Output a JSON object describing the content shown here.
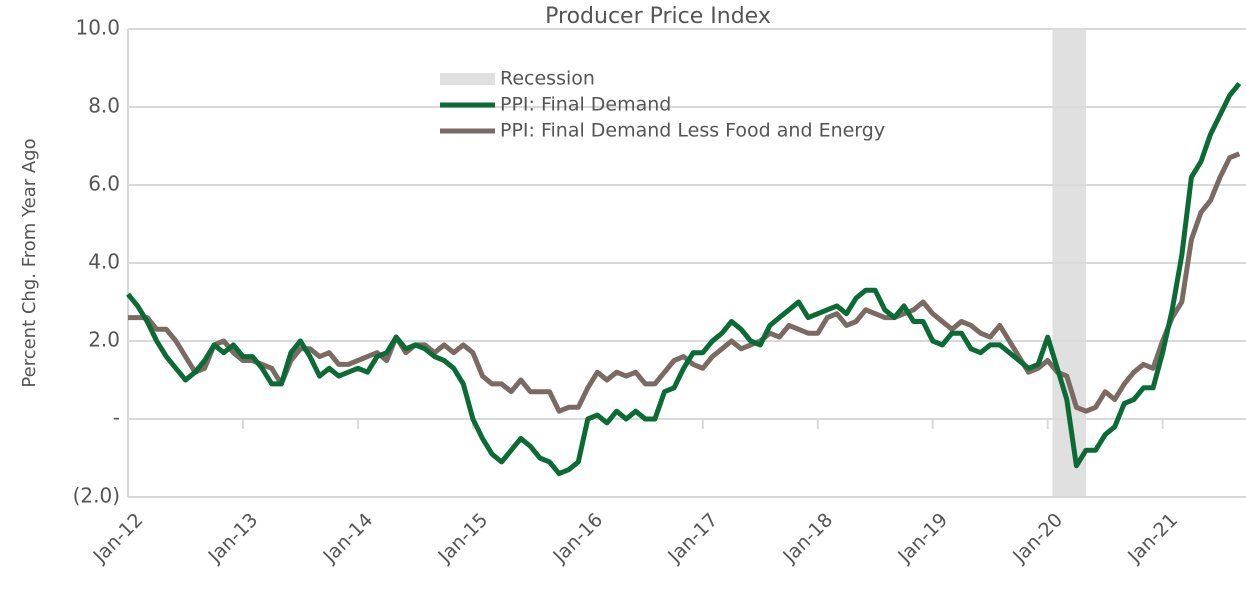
{
  "chart_data": {
    "type": "line",
    "title": "Producer Price Index",
    "y_label": "Percent Chg. From Year Ago",
    "categories": [
      "Jan-12",
      null,
      null,
      null,
      null,
      null,
      null,
      null,
      null,
      null,
      null,
      null,
      "Jan-13",
      null,
      null,
      null,
      null,
      null,
      null,
      null,
      null,
      null,
      null,
      null,
      "Jan-14",
      null,
      null,
      null,
      null,
      null,
      null,
      null,
      null,
      null,
      null,
      null,
      "Jan-15",
      null,
      null,
      null,
      null,
      null,
      null,
      null,
      null,
      null,
      null,
      null,
      "Jan-16",
      null,
      null,
      null,
      null,
      null,
      null,
      null,
      null,
      null,
      null,
      null,
      "Jan-17",
      null,
      null,
      null,
      null,
      null,
      null,
      null,
      null,
      null,
      null,
      null,
      "Jan-18",
      null,
      null,
      null,
      null,
      null,
      null,
      null,
      null,
      null,
      null,
      null,
      "Jan-19",
      null,
      null,
      null,
      null,
      null,
      null,
      null,
      null,
      null,
      null,
      null,
      "Jan-20",
      null,
      null,
      null,
      null,
      null,
      null,
      null,
      null,
      null,
      null,
      null,
      "Jan-21",
      null,
      null,
      null,
      null,
      null,
      null,
      null,
      null
    ],
    "recession": {
      "name": "Recession",
      "color": "#e0e0e0",
      "start": 97,
      "end": 100
    },
    "series": [
      {
        "name": "PPI: Final Demand",
        "color": "#0b6b35",
        "values": [
          3.2,
          2.9,
          2.5,
          2.0,
          1.6,
          1.3,
          1.0,
          1.2,
          1.5,
          1.9,
          1.7,
          1.9,
          1.6,
          1.6,
          1.3,
          0.9,
          0.9,
          1.7,
          2.0,
          1.6,
          1.1,
          1.3,
          1.1,
          1.2,
          1.3,
          1.2,
          1.6,
          1.7,
          2.1,
          1.8,
          1.9,
          1.8,
          1.6,
          1.5,
          1.3,
          0.9,
          0.0,
          -0.5,
          -0.9,
          -1.1,
          -0.8,
          -0.5,
          -0.7,
          -1.0,
          -1.1,
          -1.4,
          -1.3,
          -1.1,
          0.0,
          0.1,
          -0.1,
          0.2,
          0.0,
          0.2,
          0.0,
          0.0,
          0.7,
          0.8,
          1.3,
          1.7,
          1.7,
          2.0,
          2.2,
          2.5,
          2.3,
          2.0,
          1.9,
          2.4,
          2.6,
          2.8,
          3.0,
          2.6,
          2.7,
          2.8,
          2.9,
          2.7,
          3.1,
          3.3,
          3.3,
          2.8,
          2.6,
          2.9,
          2.5,
          2.5,
          2.0,
          1.9,
          2.2,
          2.2,
          1.8,
          1.7,
          1.9,
          1.9,
          1.7,
          1.5,
          1.3,
          1.4,
          2.1,
          1.3,
          0.5,
          -1.2,
          -0.8,
          -0.8,
          -0.4,
          -0.2,
          0.4,
          0.5,
          0.8,
          0.8,
          1.7,
          2.8,
          4.2,
          6.2,
          6.6,
          7.3,
          7.8,
          8.3,
          8.6
        ]
      },
      {
        "name": "PPI: Final Demand Less Food and Energy",
        "color": "#7a6a62",
        "values": [
          2.6,
          2.6,
          2.6,
          2.3,
          2.3,
          2.0,
          1.6,
          1.2,
          1.3,
          1.9,
          2.0,
          1.7,
          1.5,
          1.5,
          1.4,
          1.3,
          0.9,
          1.5,
          1.8,
          1.8,
          1.6,
          1.7,
          1.4,
          1.4,
          1.5,
          1.6,
          1.7,
          1.5,
          2.1,
          1.7,
          1.9,
          1.9,
          1.7,
          1.9,
          1.7,
          1.9,
          1.7,
          1.1,
          0.9,
          0.9,
          0.7,
          1.0,
          0.7,
          0.7,
          0.7,
          0.2,
          0.3,
          0.3,
          0.8,
          1.2,
          1.0,
          1.2,
          1.1,
          1.2,
          0.9,
          0.9,
          1.2,
          1.5,
          1.6,
          1.4,
          1.3,
          1.6,
          1.8,
          2.0,
          1.8,
          1.9,
          2.0,
          2.2,
          2.1,
          2.4,
          2.3,
          2.2,
          2.2,
          2.6,
          2.7,
          2.4,
          2.5,
          2.8,
          2.7,
          2.6,
          2.6,
          2.7,
          2.8,
          3.0,
          2.7,
          2.5,
          2.3,
          2.5,
          2.4,
          2.2,
          2.1,
          2.4,
          2.0,
          1.6,
          1.2,
          1.3,
          1.5,
          1.2,
          1.1,
          0.3,
          0.2,
          0.3,
          0.7,
          0.5,
          0.9,
          1.2,
          1.4,
          1.3,
          2.0,
          2.6,
          3.0,
          4.6,
          5.3,
          5.6,
          6.2,
          6.7,
          6.8
        ]
      }
    ],
    "ylim": [
      -2,
      10
    ],
    "yticks": [
      {
        "value": -2,
        "label": "(2.0)"
      },
      {
        "value": 0,
        "label": "-"
      },
      {
        "value": 2,
        "label": "2.0"
      },
      {
        "value": 4,
        "label": "4.0"
      },
      {
        "value": 6,
        "label": "6.0"
      },
      {
        "value": 8,
        "label": "8.0"
      },
      {
        "value": 10,
        "label": "10.0"
      }
    ],
    "grid": true
  }
}
